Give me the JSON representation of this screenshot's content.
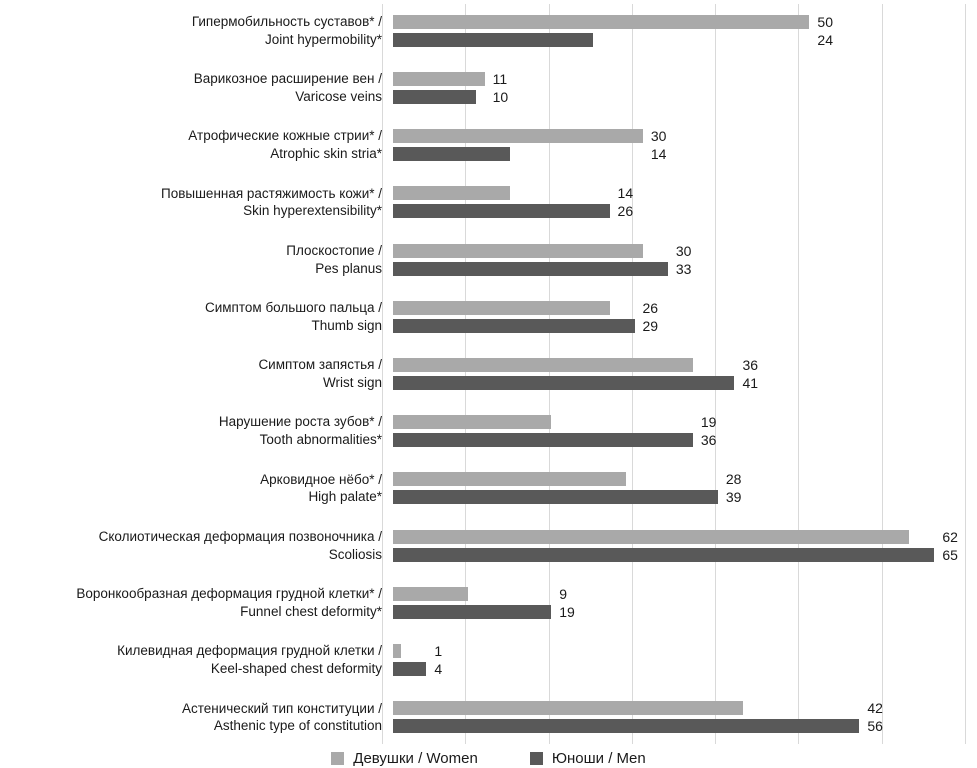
{
  "chart_data": {
    "type": "bar",
    "orientation": "horizontal",
    "title": "",
    "xlabel": "",
    "ylabel": "",
    "xlim": [
      0,
      70
    ],
    "gridline_step": 10,
    "grid": true,
    "legend_position": "bottom",
    "categories": [
      {
        "ru": "Гипермобильность суставов* /",
        "en": "Joint hypermobility*"
      },
      {
        "ru": "Варикозное расширение вен /",
        "en": "Varicose veins"
      },
      {
        "ru": "Атрофические кожные стрии* /",
        "en": "Atrophic skin stria*"
      },
      {
        "ru": "Повышенная растяжимость кожи* /",
        "en": "Skin hyperextensibility*"
      },
      {
        "ru": "Плоскостопие /",
        "en": "Pes planus"
      },
      {
        "ru": "Симптом большого пальца /",
        "en": "Thumb sign"
      },
      {
        "ru": "Симптом запястья /",
        "en": "Wrist sign"
      },
      {
        "ru": "Нарушение роста зубов* /",
        "en": "Tooth abnormalities*"
      },
      {
        "ru": "Арковидное нёбо* /",
        "en": "High palate*"
      },
      {
        "ru": "Сколиотическая деформация позвоночника /",
        "en": "Scoliosis"
      },
      {
        "ru": "Воронкообразная деформация грудной клетки* /",
        "en": "Funnel chest deformity*"
      },
      {
        "ru": "Килевидная деформация грудной клетки /",
        "en": "Keel-shaped chest deformity"
      },
      {
        "ru": "Астенический тип конституции /",
        "en": "Asthenic type of constitution"
      }
    ],
    "series": [
      {
        "name": "Девушки / Women",
        "color": "#a9a9a9",
        "values": [
          50,
          11,
          30,
          14,
          30,
          26,
          36,
          19,
          28,
          62,
          9,
          1,
          42
        ]
      },
      {
        "name": "Юноши / Men",
        "color": "#595959",
        "values": [
          24,
          10,
          14,
          26,
          33,
          29,
          41,
          36,
          39,
          65,
          19,
          4,
          56
        ]
      }
    ]
  },
  "colors": {
    "gridline": "#d9d9d9",
    "text": "#1a1a1a",
    "background": "#ffffff"
  }
}
